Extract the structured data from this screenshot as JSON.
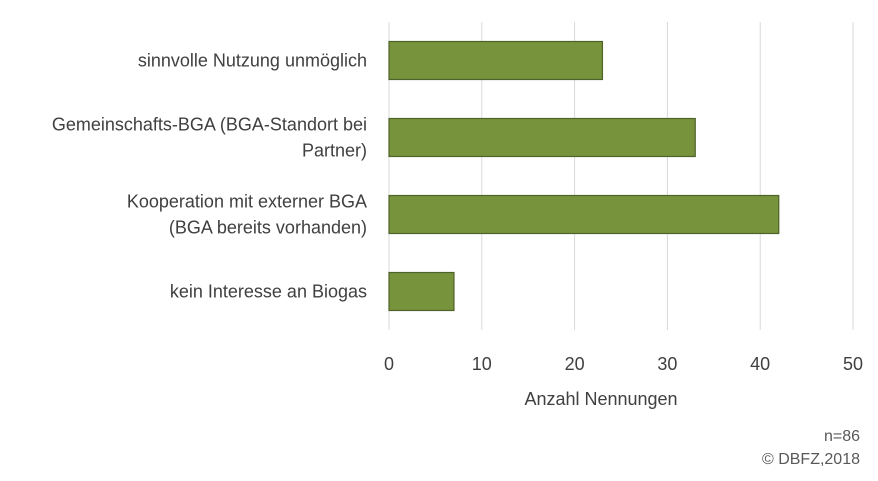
{
  "chart_data": {
    "type": "bar",
    "orientation": "horizontal",
    "categories": [
      [
        "sinnvolle Nutzung unmöglich"
      ],
      [
        "Gemeinschafts-BGA (BGA-Standort bei",
        "Partner)"
      ],
      [
        "Kooperation mit externer BGA",
        "(BGA bereits vorhanden)"
      ],
      [
        "kein Interesse an Biogas"
      ]
    ],
    "values": [
      23,
      33,
      42,
      7
    ],
    "xlabel": "Anzahl Nennungen",
    "xlim": [
      0,
      50
    ],
    "xticks": [
      0,
      10,
      20,
      30,
      40,
      50
    ],
    "grid": true,
    "bar_color": "#77933c",
    "bar_edge_color": "#4f6228"
  },
  "notes": {
    "sample": "n=86",
    "copyright": "© DBFZ,2018"
  }
}
